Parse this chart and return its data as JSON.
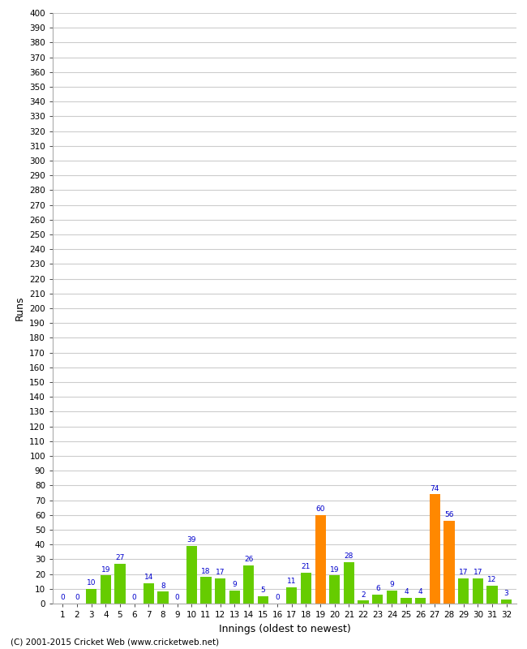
{
  "values": [
    0,
    0,
    10,
    19,
    27,
    0,
    14,
    8,
    0,
    39,
    18,
    17,
    9,
    26,
    5,
    0,
    11,
    21,
    60,
    19,
    28,
    2,
    6,
    9,
    4,
    4,
    74,
    56,
    17,
    17,
    12,
    3
  ],
  "innings_labels": [
    "1",
    "2",
    "3",
    "4",
    "5",
    "6",
    "7",
    "8",
    "9",
    "10",
    "11",
    "12",
    "13",
    "14",
    "15",
    "16",
    "17",
    "18",
    "19",
    "20",
    "21",
    "22",
    "23",
    "24",
    "25",
    "26",
    "27",
    "28",
    "29",
    "30",
    "31",
    "32"
  ],
  "orange_indices": [
    18,
    26,
    27
  ],
  "bar_color_green": "#66cc00",
  "bar_color_orange": "#ff8800",
  "label_color": "#0000cc",
  "ylabel": "Runs",
  "xlabel": "Innings (oldest to newest)",
  "ylim": [
    0,
    400
  ],
  "yticks": [
    0,
    10,
    20,
    30,
    40,
    50,
    60,
    70,
    80,
    90,
    100,
    110,
    120,
    130,
    140,
    150,
    160,
    170,
    180,
    190,
    200,
    210,
    220,
    230,
    240,
    250,
    260,
    270,
    280,
    290,
    300,
    310,
    320,
    330,
    340,
    350,
    360,
    370,
    380,
    390,
    400
  ],
  "footer": "(C) 2001-2015 Cricket Web (www.cricketweb.net)",
  "background_color": "#ffffff",
  "grid_color": "#cccccc"
}
